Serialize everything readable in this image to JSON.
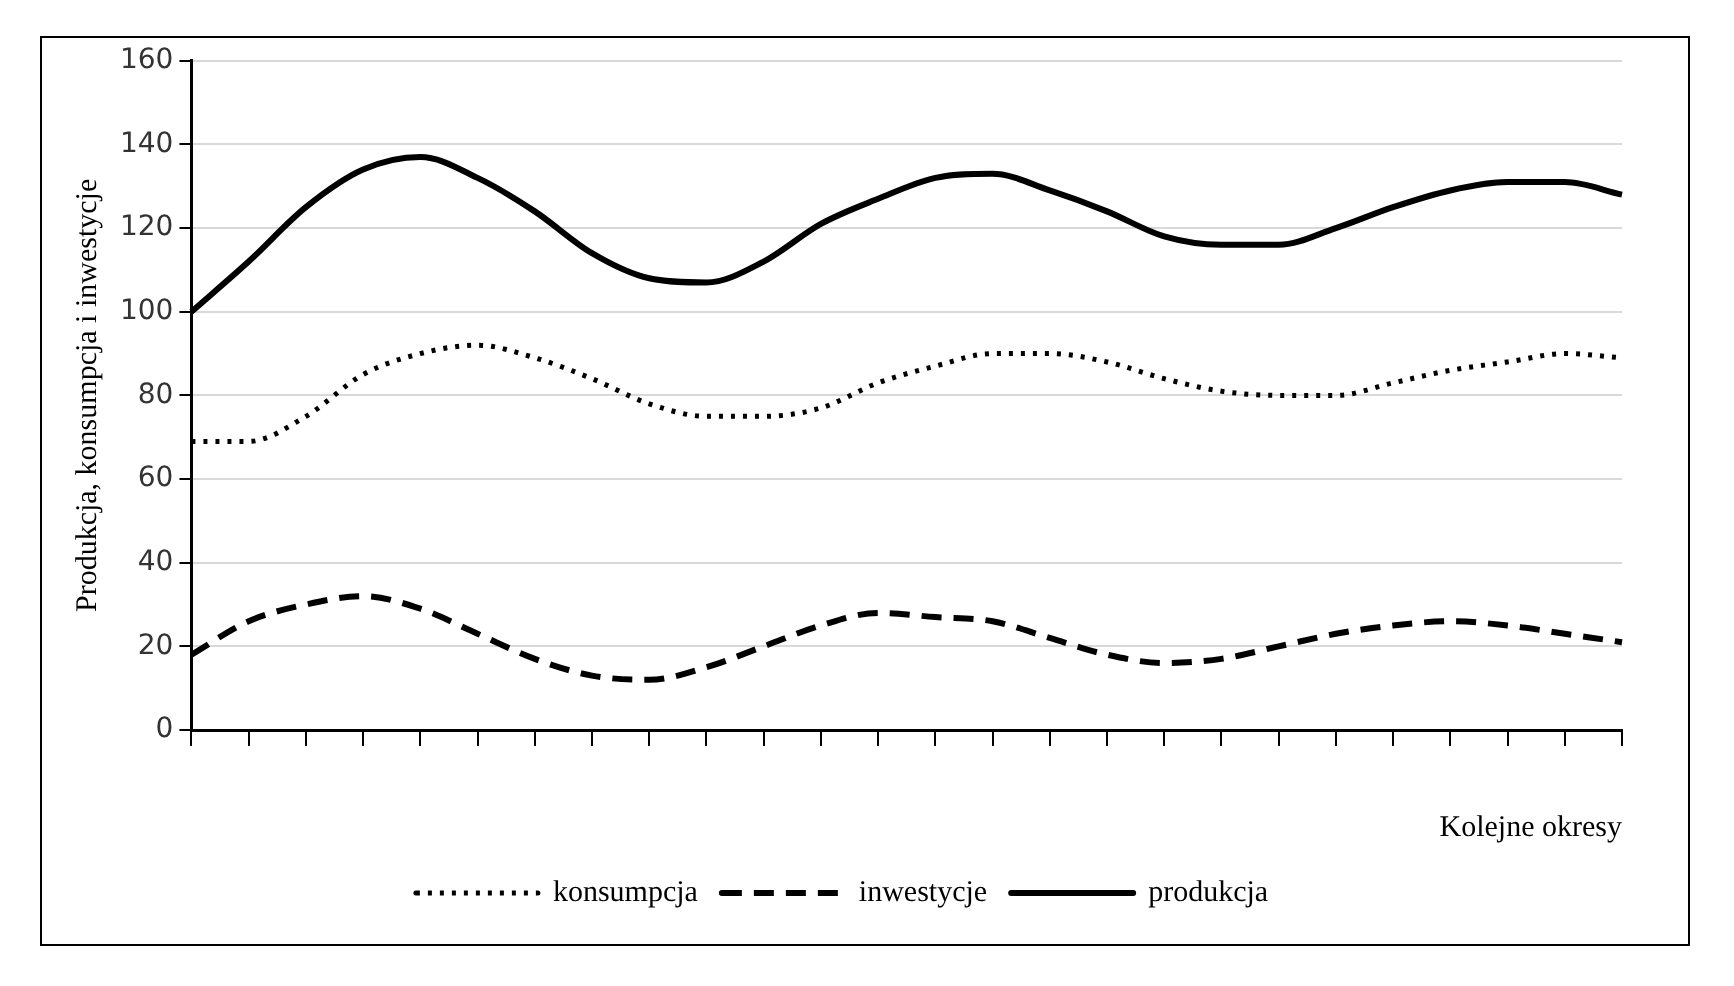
{
  "chart_data": {
    "type": "line",
    "xlabel": "Kolejne okresy",
    "ylabel": "Produkcja, konsumpcja i inwestycje",
    "categories": [
      null,
      null,
      null,
      null,
      null,
      null,
      null,
      null,
      null,
      null,
      null,
      null,
      null,
      null,
      null,
      null,
      null,
      null,
      null,
      null,
      null,
      null,
      null,
      null,
      null,
      null
    ],
    "ylim": [
      0,
      160
    ],
    "yticks": [
      0,
      20,
      40,
      60,
      80,
      100,
      120,
      140,
      160
    ],
    "grid": "y",
    "legend": "bottom",
    "marker": "none",
    "series": [
      {
        "name": "konsumpcja",
        "color": "#000000",
        "line_style": "dotted",
        "values": [
          69,
          69,
          75,
          85,
          90,
          92,
          89,
          84,
          78,
          75,
          75,
          77,
          83,
          87,
          90,
          90,
          88,
          84,
          81,
          80,
          80,
          83,
          86,
          88,
          90,
          89
        ]
      },
      {
        "name": "inwestycje",
        "color": "#000000",
        "line_style": "dashed",
        "values": [
          18,
          26,
          30,
          32,
          29,
          23,
          17,
          13,
          12,
          15,
          20,
          25,
          28,
          27,
          26,
          22,
          18,
          16,
          17,
          20,
          23,
          25,
          26,
          25,
          23,
          21
        ]
      },
      {
        "name": "produkcja",
        "color": "#000000",
        "line_style": "solid",
        "values": [
          100,
          112,
          125,
          134,
          137,
          132,
          124,
          114,
          108,
          107,
          112,
          121,
          127,
          132,
          133,
          129,
          124,
          118,
          116,
          116,
          120,
          125,
          129,
          131,
          131,
          128
        ]
      }
    ]
  }
}
